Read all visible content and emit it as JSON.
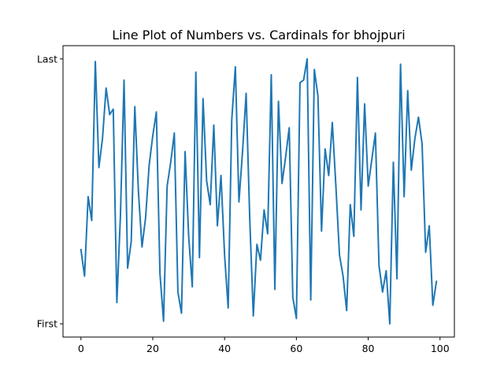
{
  "chart_data": {
    "type": "line",
    "title": "Line Plot of Numbers vs. Cardinals for bhojpuri",
    "xlabel": "",
    "ylabel": "",
    "xlim": [
      -5,
      104
    ],
    "ylim": [
      -0.05,
      1.05
    ],
    "xticks": [
      0,
      20,
      40,
      60,
      80,
      100
    ],
    "xtick_labels": [
      "0",
      "20",
      "40",
      "60",
      "80",
      "100"
    ],
    "yticks": [
      0,
      1
    ],
    "ytick_labels": [
      "First",
      "Last"
    ],
    "grid": false,
    "color": "#1f77b4",
    "series": [
      {
        "values": [
          0.28,
          0.18,
          0.48,
          0.39,
          0.99,
          0.59,
          0.7,
          0.89,
          0.79,
          0.81,
          0.08,
          0.41,
          0.92,
          0.21,
          0.31,
          0.82,
          0.5,
          0.29,
          0.4,
          0.6,
          0.71,
          0.8,
          0.19,
          0.01,
          0.52,
          0.61,
          0.72,
          0.12,
          0.04,
          0.65,
          0.33,
          0.14,
          0.95,
          0.25,
          0.85,
          0.54,
          0.45,
          0.75,
          0.37,
          0.56,
          0.26,
          0.06,
          0.77,
          0.97,
          0.46,
          0.65,
          0.87,
          0.4,
          0.03,
          0.3,
          0.24,
          0.43,
          0.34,
          0.94,
          0.13,
          0.84,
          0.53,
          0.63,
          0.74,
          0.1,
          0.02,
          0.91,
          0.92,
          1.0,
          0.09,
          0.96,
          0.86,
          0.35,
          0.66,
          0.56,
          0.76,
          0.52,
          0.26,
          0.18,
          0.05,
          0.45,
          0.33,
          0.93,
          0.43,
          0.83,
          0.52,
          0.62,
          0.72,
          0.22,
          0.12,
          0.2,
          0.0,
          0.61,
          0.17,
          0.98,
          0.48,
          0.88,
          0.58,
          0.7,
          0.78,
          0.68,
          0.27,
          0.37,
          0.07,
          0.16
        ]
      }
    ]
  }
}
